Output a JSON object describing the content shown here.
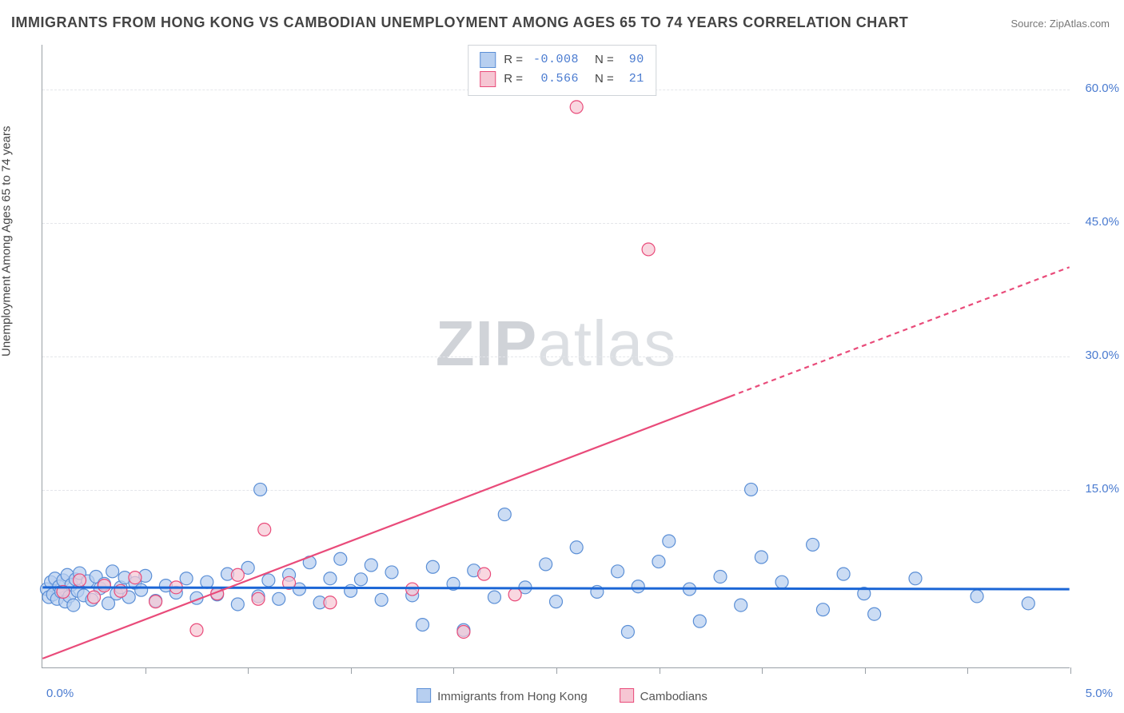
{
  "title": "IMMIGRANTS FROM HONG KONG VS CAMBODIAN UNEMPLOYMENT AMONG AGES 65 TO 74 YEARS CORRELATION CHART",
  "source": "Source: ZipAtlas.com",
  "watermark_a": "ZIP",
  "watermark_b": "atlas",
  "chart": {
    "type": "scatter",
    "xlim": [
      0.0,
      5.0
    ],
    "ylim": [
      -5.0,
      65.0
    ],
    "y_ticks": [
      15.0,
      30.0,
      45.0,
      60.0
    ],
    "y_tick_labels": [
      "15.0%",
      "30.0%",
      "45.0%",
      "60.0%"
    ],
    "x_ticks": [
      0.5,
      1.0,
      1.5,
      2.0,
      2.5,
      3.0,
      3.5,
      4.0,
      4.5,
      5.0
    ],
    "origin_label": "0.0%",
    "xmax_label": "5.0%",
    "y_axis_label": "Unemployment Among Ages 65 to 74 years",
    "grid_color": "#e4e6ea",
    "axis_color": "#9aa0a6",
    "background": "#ffffff",
    "series": [
      {
        "name": "Immigrants from Hong Kong",
        "color_fill": "#b7cff0",
        "color_stroke": "#5b8fd6",
        "marker_r": 8,
        "marker_opacity": 0.72,
        "R": "-0.008",
        "N": "90",
        "trend": {
          "y0": 4.0,
          "y1": 3.8,
          "color": "#1b66d6",
          "width": 3,
          "dash_from_x": null
        },
        "points": [
          [
            0.02,
            3.8
          ],
          [
            0.03,
            2.9
          ],
          [
            0.04,
            4.6
          ],
          [
            0.05,
            3.2
          ],
          [
            0.06,
            5.0
          ],
          [
            0.07,
            2.7
          ],
          [
            0.08,
            4.1
          ],
          [
            0.09,
            3.5
          ],
          [
            0.1,
            4.8
          ],
          [
            0.11,
            2.4
          ],
          [
            0.12,
            5.4
          ],
          [
            0.13,
            3.0
          ],
          [
            0.14,
            4.3
          ],
          [
            0.15,
            2.0
          ],
          [
            0.16,
            4.9
          ],
          [
            0.17,
            3.6
          ],
          [
            0.18,
            5.6
          ],
          [
            0.2,
            3.1
          ],
          [
            0.22,
            4.7
          ],
          [
            0.24,
            2.6
          ],
          [
            0.26,
            5.2
          ],
          [
            0.28,
            3.9
          ],
          [
            0.3,
            4.4
          ],
          [
            0.32,
            2.2
          ],
          [
            0.34,
            5.8
          ],
          [
            0.36,
            3.3
          ],
          [
            0.38,
            4.0
          ],
          [
            0.4,
            5.1
          ],
          [
            0.42,
            2.9
          ],
          [
            0.45,
            4.5
          ],
          [
            0.48,
            3.7
          ],
          [
            0.5,
            5.3
          ],
          [
            0.55,
            2.5
          ],
          [
            0.6,
            4.2
          ],
          [
            0.65,
            3.4
          ],
          [
            0.7,
            5.0
          ],
          [
            0.75,
            2.8
          ],
          [
            0.8,
            4.6
          ],
          [
            0.85,
            3.2
          ],
          [
            0.9,
            5.5
          ],
          [
            0.95,
            2.1
          ],
          [
            1.0,
            6.2
          ],
          [
            1.05,
            3.0
          ],
          [
            1.06,
            15.0
          ],
          [
            1.1,
            4.8
          ],
          [
            1.15,
            2.7
          ],
          [
            1.2,
            5.4
          ],
          [
            1.25,
            3.8
          ],
          [
            1.3,
            6.8
          ],
          [
            1.35,
            2.3
          ],
          [
            1.4,
            5.0
          ],
          [
            1.45,
            7.2
          ],
          [
            1.5,
            3.6
          ],
          [
            1.55,
            4.9
          ],
          [
            1.6,
            6.5
          ],
          [
            1.65,
            2.6
          ],
          [
            1.7,
            5.7
          ],
          [
            1.8,
            3.1
          ],
          [
            1.85,
            -0.2
          ],
          [
            1.9,
            6.3
          ],
          [
            2.0,
            4.4
          ],
          [
            2.05,
            -0.8
          ],
          [
            2.1,
            5.9
          ],
          [
            2.2,
            2.9
          ],
          [
            2.25,
            12.2
          ],
          [
            2.35,
            4.0
          ],
          [
            2.45,
            6.6
          ],
          [
            2.5,
            2.4
          ],
          [
            2.6,
            8.5
          ],
          [
            2.7,
            3.5
          ],
          [
            2.8,
            5.8
          ],
          [
            2.85,
            -1.0
          ],
          [
            2.9,
            4.1
          ],
          [
            3.0,
            6.9
          ],
          [
            3.05,
            9.2
          ],
          [
            3.15,
            3.8
          ],
          [
            3.2,
            0.2
          ],
          [
            3.3,
            5.2
          ],
          [
            3.4,
            2.0
          ],
          [
            3.45,
            15.0
          ],
          [
            3.5,
            7.4
          ],
          [
            3.6,
            4.6
          ],
          [
            3.75,
            8.8
          ],
          [
            3.8,
            1.5
          ],
          [
            3.9,
            5.5
          ],
          [
            4.0,
            3.3
          ],
          [
            4.05,
            1.0
          ],
          [
            4.25,
            5.0
          ],
          [
            4.55,
            3.0
          ],
          [
            4.8,
            2.2
          ]
        ]
      },
      {
        "name": "Cambodians",
        "color_fill": "#f6c6d3",
        "color_stroke": "#e94b7a",
        "marker_r": 8,
        "marker_opacity": 0.7,
        "R": "0.566",
        "N": "21",
        "trend": {
          "y0": -4.0,
          "y1": 40.0,
          "color": "#e94b7a",
          "width": 2.2,
          "dash_from_x": 3.35
        },
        "points": [
          [
            0.1,
            3.5
          ],
          [
            0.18,
            4.8
          ],
          [
            0.25,
            2.9
          ],
          [
            0.3,
            4.2
          ],
          [
            0.38,
            3.6
          ],
          [
            0.45,
            5.1
          ],
          [
            0.55,
            2.4
          ],
          [
            0.65,
            4.0
          ],
          [
            0.75,
            -0.8
          ],
          [
            0.85,
            3.3
          ],
          [
            0.95,
            5.4
          ],
          [
            1.05,
            2.7
          ],
          [
            1.08,
            10.5
          ],
          [
            1.2,
            4.5
          ],
          [
            1.4,
            2.3
          ],
          [
            1.8,
            3.8
          ],
          [
            2.05,
            -1.0
          ],
          [
            2.15,
            5.5
          ],
          [
            2.3,
            3.2
          ],
          [
            2.6,
            58.0
          ],
          [
            2.95,
            42.0
          ]
        ]
      }
    ]
  },
  "legend_bottom": [
    {
      "label": "Immigrants from Hong Kong",
      "fill": "#b7cff0",
      "stroke": "#5b8fd6"
    },
    {
      "label": "Cambodians",
      "fill": "#f6c6d3",
      "stroke": "#e94b7a"
    }
  ]
}
